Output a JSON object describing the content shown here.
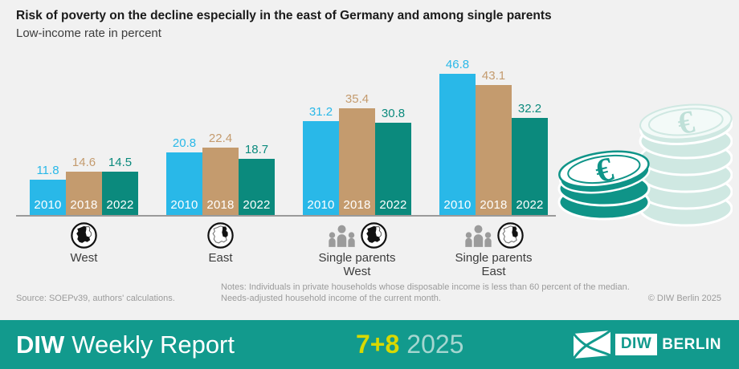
{
  "header": {
    "title": "Risk of poverty on the decline especially in the east of Germany and among single parents",
    "subtitle": "Low-income rate in percent"
  },
  "chart_data": {
    "type": "bar",
    "title": "Risk of poverty on the decline especially in the east of Germany and among single parents",
    "ylabel": "Low-income rate in percent",
    "ylim": [
      0,
      50
    ],
    "grid": false,
    "value_labels": true,
    "categories": [
      "West",
      "East",
      "Single parents West",
      "Single parents East"
    ],
    "category_label_lines": [
      [
        "West"
      ],
      [
        "East"
      ],
      [
        "Single parents",
        "West"
      ],
      [
        "Single parents",
        "East"
      ]
    ],
    "category_icons": [
      [
        "germany-west-icon"
      ],
      [
        "germany-east-icon"
      ],
      [
        "single-parents-icon",
        "germany-west-icon"
      ],
      [
        "single-parents-icon",
        "germany-east-icon"
      ]
    ],
    "series": [
      {
        "name": "2010",
        "color": "#29b8e8",
        "values": [
          11.8,
          20.8,
          31.2,
          46.8
        ]
      },
      {
        "name": "2018",
        "color": "#c49b6e",
        "values": [
          14.6,
          22.4,
          35.4,
          43.1
        ]
      },
      {
        "name": "2022",
        "color": "#0b8a7d",
        "values": [
          14.5,
          18.7,
          30.8,
          32.2
        ]
      }
    ]
  },
  "footnotes": {
    "source": "Source: SOEPv39, authors' calculations.",
    "notes_line1": "Notes: Individuals in private households whose disposable income is less than 60 percent of the median.",
    "notes_line2": "Needs-adjusted household income of the current month.",
    "copyright": "© DIW Berlin 2025"
  },
  "footer": {
    "brand_bold": "DIW",
    "brand_regular": "Weekly Report",
    "issue": "7+8",
    "year": "2025",
    "logo_diw": "DIW",
    "logo_berlin": "BERLIN"
  },
  "colors": {
    "background": "#f1f1f1",
    "bar_2010": "#29b8e8",
    "bar_2018": "#c49b6e",
    "bar_2022": "#0b8a7d",
    "footer_band": "#129a8d",
    "issue_yellow": "#d8d900",
    "year_pale": "#a5d6d0",
    "coin_dark": "#0f9488",
    "coin_light": "#cfe8e2",
    "muted_text": "#9b9b9b"
  }
}
